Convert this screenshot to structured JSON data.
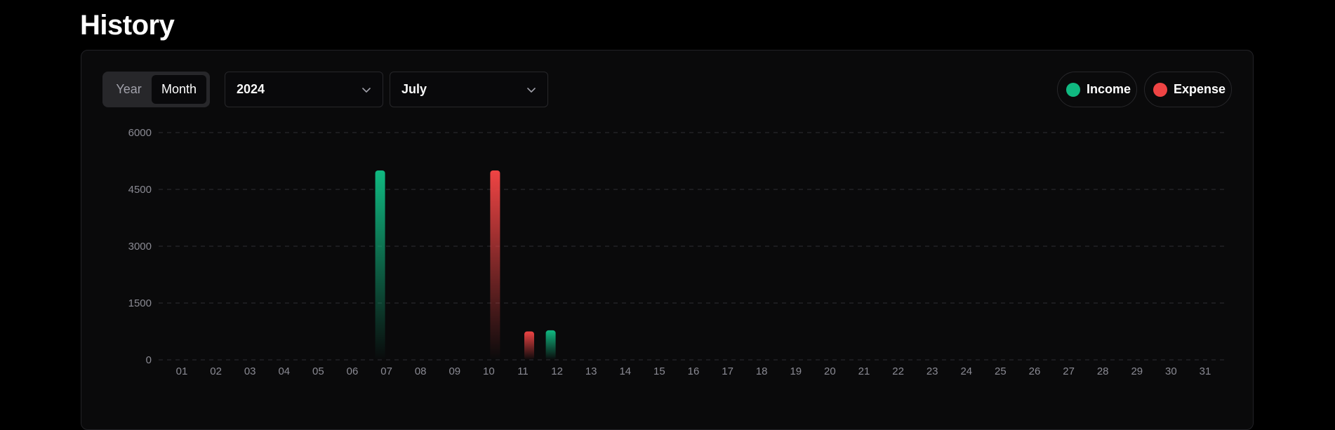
{
  "page": {
    "title": "History"
  },
  "controls": {
    "toggle": {
      "options": [
        "Year",
        "Month"
      ],
      "selected": "Month"
    },
    "year_select": {
      "value": "2024"
    },
    "month_select": {
      "value": "July"
    }
  },
  "legend": [
    {
      "label": "Income",
      "color": "#10b981"
    },
    {
      "label": "Expense",
      "color": "#ef4444"
    }
  ],
  "chart_data": {
    "type": "bar",
    "title": "",
    "xlabel": "",
    "ylabel": "",
    "ylim": [
      0,
      6000
    ],
    "yticks": [
      0,
      1500,
      3000,
      4500,
      6000
    ],
    "grid": true,
    "legend_position": "top-right",
    "categories": [
      "01",
      "02",
      "03",
      "04",
      "05",
      "06",
      "07",
      "08",
      "09",
      "10",
      "11",
      "12",
      "13",
      "14",
      "15",
      "16",
      "17",
      "18",
      "19",
      "20",
      "21",
      "22",
      "23",
      "24",
      "25",
      "26",
      "27",
      "28",
      "29",
      "30",
      "31"
    ],
    "series": [
      {
        "name": "Income",
        "color": "#10b981",
        "values": [
          0,
          0,
          0,
          0,
          0,
          0,
          5000,
          0,
          0,
          0,
          0,
          780,
          0,
          0,
          0,
          0,
          0,
          0,
          0,
          0,
          0,
          0,
          0,
          0,
          0,
          0,
          0,
          0,
          0,
          0,
          0
        ]
      },
      {
        "name": "Expense",
        "color": "#ef4444",
        "values": [
          0,
          0,
          0,
          0,
          0,
          0,
          0,
          0,
          0,
          5000,
          750,
          0,
          0,
          0,
          0,
          0,
          0,
          0,
          0,
          0,
          0,
          0,
          0,
          0,
          0,
          0,
          0,
          0,
          0,
          0,
          0
        ]
      }
    ]
  }
}
